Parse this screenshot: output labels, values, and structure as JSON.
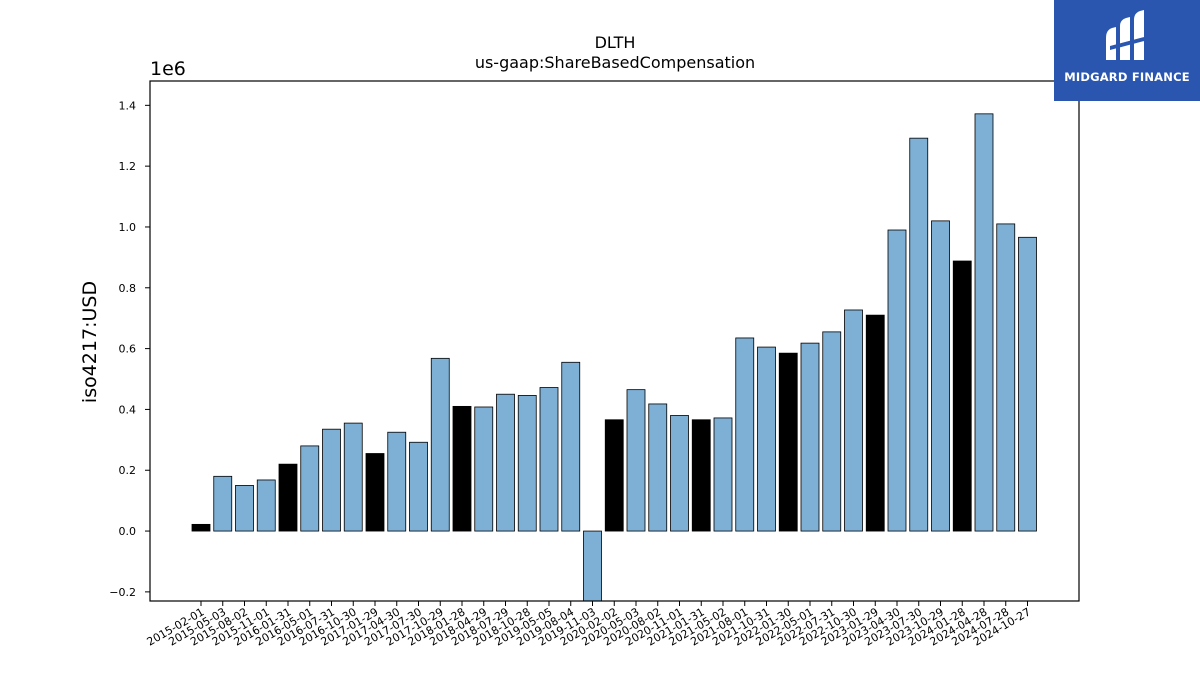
{
  "chart_data": {
    "type": "bar",
    "title": "DLTH",
    "subtitle": "us-gaap:ShareBasedCompensation",
    "ylabel": "iso4217:USD",
    "xlabel": "",
    "y_scale_label": "1e6",
    "ylim": [
      -230000,
      1480000
    ],
    "yticks": [
      -0.2,
      0.0,
      0.2,
      0.4,
      0.6,
      0.8,
      1.0,
      1.2,
      1.4
    ],
    "ytick_labels": [
      "−0.2",
      "0.0",
      "0.2",
      "0.4",
      "0.6",
      "0.8",
      "1.0",
      "1.2",
      "1.4"
    ],
    "categories": [
      "2015-02-01",
      "2015-05-03",
      "2015-08-02",
      "2015-11-01",
      "2016-01-31",
      "2016-05-01",
      "2016-07-31",
      "2016-10-30",
      "2017-01-29",
      "2017-04-30",
      "2017-07-30",
      "2017-10-29",
      "2018-01-28",
      "2018-04-29",
      "2018-07-29",
      "2018-10-28",
      "2019-05-05",
      "2019-08-04",
      "2019-11-03",
      "2020-02-02",
      "2020-05-03",
      "2020-08-02",
      "2020-11-01",
      "2021-01-31",
      "2021-05-02",
      "2021-08-01",
      "2021-10-31",
      "2022-01-30",
      "2022-05-01",
      "2022-07-31",
      "2022-10-30",
      "2023-01-29",
      "2023-04-30",
      "2023-07-30",
      "2023-10-29",
      "2024-01-28",
      "2024-04-28",
      "2024-07-28",
      "2024-10-27"
    ],
    "values": [
      22000,
      180000,
      150000,
      168000,
      220000,
      280000,
      335000,
      355000,
      255000,
      325000,
      292000,
      568000,
      410000,
      408000,
      450000,
      446000,
      472000,
      555000,
      -240000,
      366000,
      465000,
      418000,
      380000,
      366000,
      372000,
      635000,
      605000,
      585000,
      618000,
      655000,
      727000,
      710000,
      990000,
      1292000,
      1020000,
      888000,
      1372000,
      1010000,
      966000
    ],
    "fiscal_year_end": [
      true,
      false,
      false,
      false,
      true,
      false,
      false,
      false,
      true,
      false,
      false,
      false,
      true,
      false,
      false,
      false,
      false,
      false,
      false,
      true,
      false,
      false,
      false,
      true,
      false,
      false,
      false,
      true,
      false,
      false,
      false,
      true,
      false,
      false,
      false,
      true,
      false,
      false,
      false
    ],
    "colors": {
      "quarter": "#7eafd4",
      "year_end": "#000000"
    },
    "grid": false,
    "legend": "none"
  },
  "logo": {
    "text": "MIDGARD FINANCE",
    "icon": "midgard-logo-icon",
    "background": "#2a56b0"
  }
}
